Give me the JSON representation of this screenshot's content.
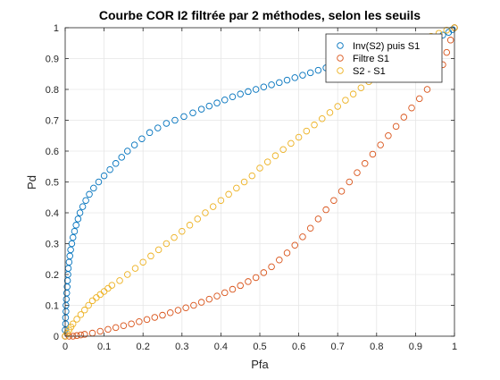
{
  "chart_data": {
    "type": "scatter",
    "title": "Courbe COR I2 filtrée par 2 méthodes, selon les seuils",
    "xlabel": "Pfa",
    "ylabel": "Pd",
    "xlim": [
      0,
      1
    ],
    "ylim": [
      0,
      1
    ],
    "grid": true,
    "legend_position": "top-right",
    "x_ticks": [
      "0",
      "0.1",
      "0.2",
      "0.3",
      "0.4",
      "0.5",
      "0.6",
      "0.7",
      "0.8",
      "0.9",
      "1"
    ],
    "y_ticks": [
      "0",
      "0.1",
      "0.2",
      "0.3",
      "0.4",
      "0.5",
      "0.6",
      "0.7",
      "0.8",
      "0.9",
      "1"
    ],
    "series": [
      {
        "name": "Inv(S2) puis S1",
        "color": "#0072BD",
        "marker": "circle-open",
        "points": [
          [
            0,
            0
          ],
          [
            0,
            0.02
          ],
          [
            0.001,
            0.04
          ],
          [
            0.001,
            0.06
          ],
          [
            0.002,
            0.08
          ],
          [
            0.002,
            0.1
          ],
          [
            0.003,
            0.12
          ],
          [
            0.004,
            0.14
          ],
          [
            0.005,
            0.16
          ],
          [
            0.006,
            0.18
          ],
          [
            0.007,
            0.2
          ],
          [
            0.008,
            0.22
          ],
          [
            0.01,
            0.24
          ],
          [
            0.012,
            0.26
          ],
          [
            0.014,
            0.28
          ],
          [
            0.017,
            0.3
          ],
          [
            0.02,
            0.32
          ],
          [
            0.024,
            0.34
          ],
          [
            0.028,
            0.36
          ],
          [
            0.033,
            0.38
          ],
          [
            0.038,
            0.4
          ],
          [
            0.045,
            0.42
          ],
          [
            0.053,
            0.44
          ],
          [
            0.062,
            0.46
          ],
          [
            0.073,
            0.48
          ],
          [
            0.086,
            0.5
          ],
          [
            0.1,
            0.52
          ],
          [
            0.115,
            0.54
          ],
          [
            0.13,
            0.56
          ],
          [
            0.145,
            0.58
          ],
          [
            0.16,
            0.6
          ],
          [
            0.178,
            0.62
          ],
          [
            0.197,
            0.64
          ],
          [
            0.217,
            0.66
          ],
          [
            0.238,
            0.675
          ],
          [
            0.26,
            0.69
          ],
          [
            0.282,
            0.7
          ],
          [
            0.305,
            0.712
          ],
          [
            0.328,
            0.724
          ],
          [
            0.35,
            0.736
          ],
          [
            0.37,
            0.746
          ],
          [
            0.39,
            0.756
          ],
          [
            0.41,
            0.766
          ],
          [
            0.43,
            0.776
          ],
          [
            0.45,
            0.785
          ],
          [
            0.47,
            0.793
          ],
          [
            0.49,
            0.8
          ],
          [
            0.51,
            0.808
          ],
          [
            0.53,
            0.815
          ],
          [
            0.55,
            0.822
          ],
          [
            0.57,
            0.83
          ],
          [
            0.59,
            0.838
          ],
          [
            0.61,
            0.846
          ],
          [
            0.63,
            0.854
          ],
          [
            0.65,
            0.862
          ],
          [
            0.67,
            0.87
          ],
          [
            0.69,
            0.877
          ],
          [
            0.71,
            0.884
          ],
          [
            0.73,
            0.891
          ],
          [
            0.75,
            0.898
          ],
          [
            0.77,
            0.905
          ],
          [
            0.79,
            0.912
          ],
          [
            0.81,
            0.919
          ],
          [
            0.83,
            0.926
          ],
          [
            0.85,
            0.933
          ],
          [
            0.87,
            0.94
          ],
          [
            0.89,
            0.947
          ],
          [
            0.91,
            0.954
          ],
          [
            0.93,
            0.961
          ],
          [
            0.95,
            0.968
          ],
          [
            0.97,
            0.976
          ],
          [
            0.985,
            0.985
          ],
          [
            0.995,
            0.994
          ],
          [
            1,
            1
          ]
        ]
      },
      {
        "name": "Filtre S1",
        "color": "#D95319",
        "marker": "circle-open",
        "points": [
          [
            0,
            0
          ],
          [
            0.01,
            0
          ],
          [
            0.02,
            0
          ],
          [
            0.03,
            0.002
          ],
          [
            0.04,
            0.004
          ],
          [
            0.05,
            0.006
          ],
          [
            0.07,
            0.01
          ],
          [
            0.09,
            0.016
          ],
          [
            0.11,
            0.022
          ],
          [
            0.13,
            0.028
          ],
          [
            0.15,
            0.034
          ],
          [
            0.17,
            0.04
          ],
          [
            0.19,
            0.047
          ],
          [
            0.21,
            0.054
          ],
          [
            0.23,
            0.061
          ],
          [
            0.25,
            0.068
          ],
          [
            0.27,
            0.076
          ],
          [
            0.29,
            0.084
          ],
          [
            0.31,
            0.092
          ],
          [
            0.33,
            0.1
          ],
          [
            0.35,
            0.11
          ],
          [
            0.37,
            0.12
          ],
          [
            0.39,
            0.13
          ],
          [
            0.41,
            0.141
          ],
          [
            0.43,
            0.152
          ],
          [
            0.45,
            0.164
          ],
          [
            0.47,
            0.177
          ],
          [
            0.49,
            0.19
          ],
          [
            0.51,
            0.206
          ],
          [
            0.53,
            0.225
          ],
          [
            0.55,
            0.247
          ],
          [
            0.57,
            0.27
          ],
          [
            0.59,
            0.295
          ],
          [
            0.61,
            0.322
          ],
          [
            0.63,
            0.35
          ],
          [
            0.65,
            0.38
          ],
          [
            0.67,
            0.41
          ],
          [
            0.69,
            0.44
          ],
          [
            0.71,
            0.47
          ],
          [
            0.73,
            0.5
          ],
          [
            0.75,
            0.53
          ],
          [
            0.77,
            0.56
          ],
          [
            0.79,
            0.59
          ],
          [
            0.81,
            0.62
          ],
          [
            0.83,
            0.65
          ],
          [
            0.85,
            0.68
          ],
          [
            0.87,
            0.71
          ],
          [
            0.89,
            0.74
          ],
          [
            0.91,
            0.77
          ],
          [
            0.93,
            0.8
          ],
          [
            0.95,
            0.84
          ],
          [
            0.97,
            0.88
          ],
          [
            0.98,
            0.92
          ],
          [
            0.99,
            0.96
          ],
          [
            1,
            1
          ]
        ]
      },
      {
        "name": "S2 - S1",
        "color": "#EDB120",
        "marker": "circle-open",
        "points": [
          [
            0,
            0
          ],
          [
            0.005,
            0.01
          ],
          [
            0.01,
            0.02
          ],
          [
            0.015,
            0.03
          ],
          [
            0.02,
            0.04
          ],
          [
            0.03,
            0.055
          ],
          [
            0.04,
            0.07
          ],
          [
            0.05,
            0.085
          ],
          [
            0.06,
            0.1
          ],
          [
            0.07,
            0.115
          ],
          [
            0.08,
            0.125
          ],
          [
            0.09,
            0.135
          ],
          [
            0.1,
            0.145
          ],
          [
            0.11,
            0.155
          ],
          [
            0.12,
            0.165
          ],
          [
            0.14,
            0.18
          ],
          [
            0.16,
            0.2
          ],
          [
            0.18,
            0.22
          ],
          [
            0.2,
            0.24
          ],
          [
            0.22,
            0.26
          ],
          [
            0.24,
            0.28
          ],
          [
            0.26,
            0.3
          ],
          [
            0.28,
            0.32
          ],
          [
            0.3,
            0.34
          ],
          [
            0.32,
            0.36
          ],
          [
            0.34,
            0.38
          ],
          [
            0.36,
            0.4
          ],
          [
            0.38,
            0.42
          ],
          [
            0.4,
            0.44
          ],
          [
            0.42,
            0.46
          ],
          [
            0.44,
            0.48
          ],
          [
            0.46,
            0.5
          ],
          [
            0.48,
            0.52
          ],
          [
            0.5,
            0.545
          ],
          [
            0.52,
            0.565
          ],
          [
            0.54,
            0.585
          ],
          [
            0.56,
            0.605
          ],
          [
            0.58,
            0.625
          ],
          [
            0.6,
            0.645
          ],
          [
            0.62,
            0.665
          ],
          [
            0.64,
            0.685
          ],
          [
            0.66,
            0.705
          ],
          [
            0.68,
            0.725
          ],
          [
            0.7,
            0.745
          ],
          [
            0.72,
            0.765
          ],
          [
            0.74,
            0.785
          ],
          [
            0.76,
            0.805
          ],
          [
            0.78,
            0.825
          ],
          [
            0.8,
            0.845
          ],
          [
            0.82,
            0.865
          ],
          [
            0.84,
            0.885
          ],
          [
            0.86,
            0.905
          ],
          [
            0.88,
            0.925
          ],
          [
            0.9,
            0.945
          ],
          [
            0.92,
            0.96
          ],
          [
            0.94,
            0.972
          ],
          [
            0.96,
            0.982
          ],
          [
            0.98,
            0.992
          ],
          [
            1,
            1
          ]
        ]
      }
    ]
  }
}
